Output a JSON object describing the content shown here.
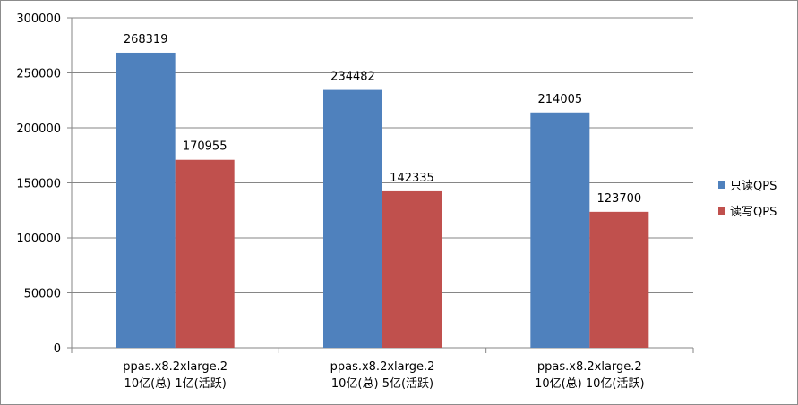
{
  "chart_data": {
    "type": "bar",
    "categories": [
      [
        "ppas.x8.2xlarge.2",
        "10亿(总) 1亿(活跃)"
      ],
      [
        "ppas.x8.2xlarge.2",
        "10亿(总) 5亿(活跃)"
      ],
      [
        "ppas.x8.2xlarge.2",
        "10亿(总) 10亿(活跃)"
      ]
    ],
    "series": [
      {
        "name": "只读QPS",
        "color": "#4f81bd",
        "values": [
          268319,
          234482,
          214005
        ]
      },
      {
        "name": "读写QPS",
        "color": "#c0504d",
        "values": [
          170955,
          142335,
          123700
        ]
      }
    ],
    "yticks": [
      0,
      50000,
      100000,
      150000,
      200000,
      250000,
      300000
    ],
    "ylim": [
      0,
      300000
    ],
    "grid": true,
    "legend": "right",
    "data_labels": true
  }
}
